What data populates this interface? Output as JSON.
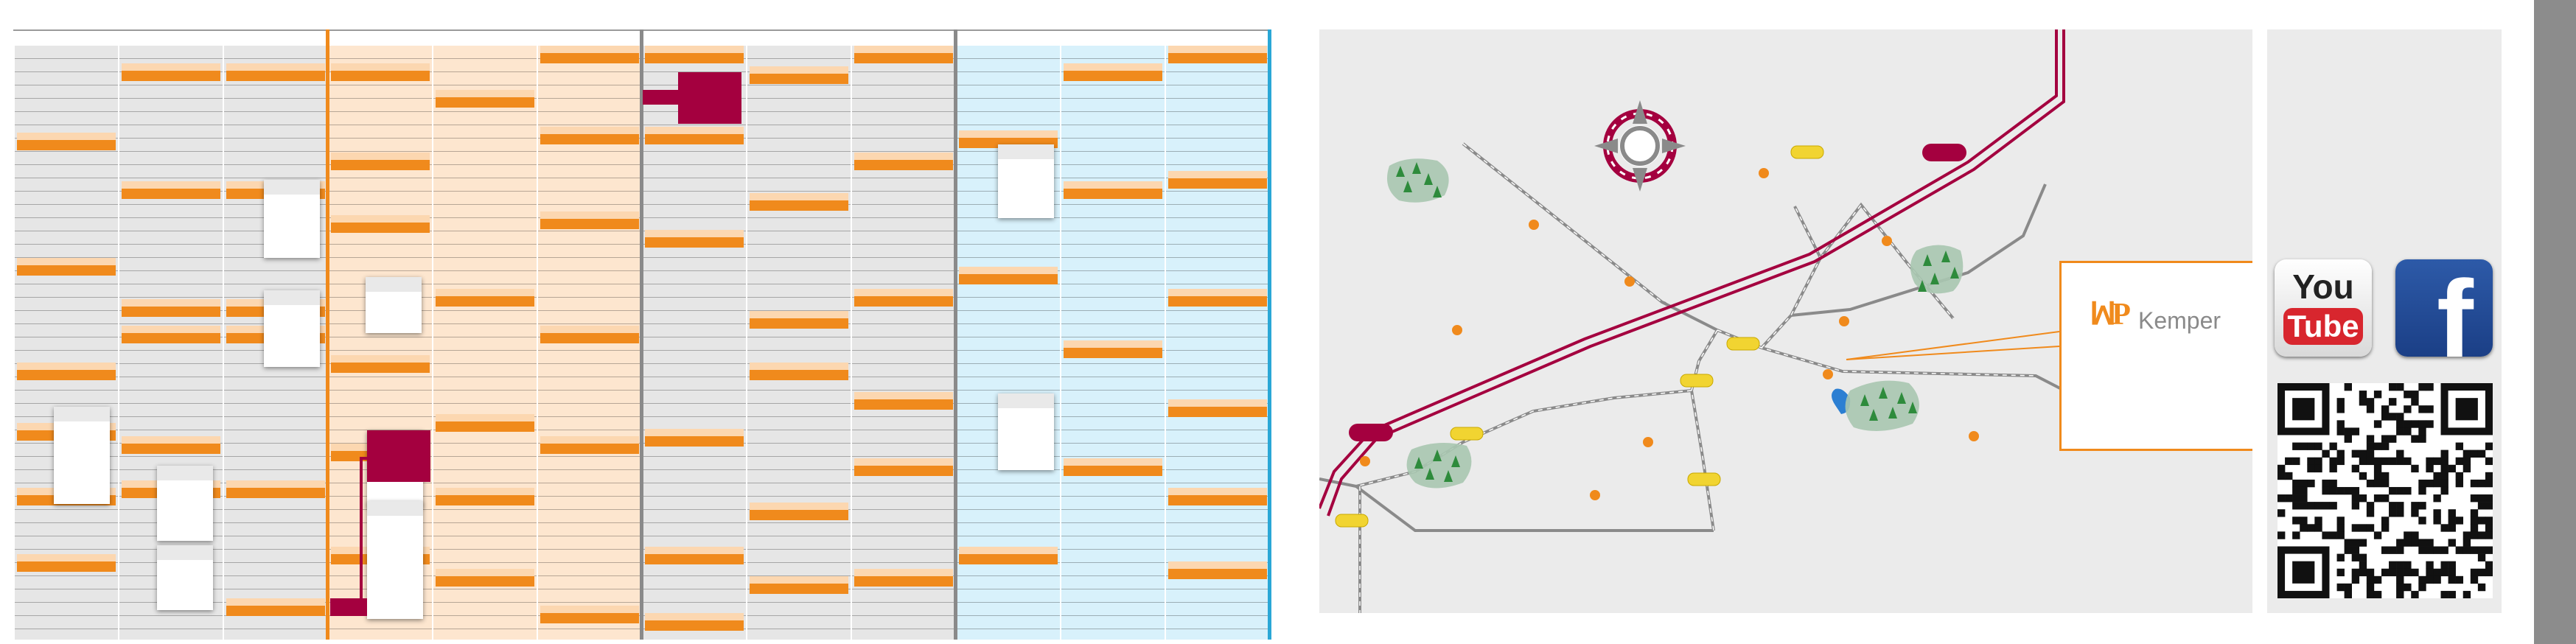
{
  "colors": {
    "grid_gray": "#e6e6e6",
    "grid_peach": "#fde6cf",
    "grid_blue": "#d8f1fb",
    "orange": "#f08a1c",
    "orange_light": "#fcd7b0",
    "magenta": "#a4003f",
    "yellow": "#f1d431",
    "map_bg": "#ebebeb",
    "rail_gray": "#8a8a8a",
    "tree_green": "#2e8b3c",
    "water_blue": "#2c7fd2",
    "facebook_blue": "#2d5aa8",
    "youtube_red": "#d8262e"
  },
  "map": {
    "compass_icon": "compass-rose-icon",
    "logo": {
      "mark": "ꟽP",
      "company": "Kemper"
    }
  },
  "social": {
    "youtube": {
      "line1": "You",
      "line2": "Tube",
      "icon": "youtube-icon"
    },
    "facebook": {
      "letter": "f",
      "icon": "facebook-icon"
    },
    "qr_icon": "qr-code-icon"
  }
}
